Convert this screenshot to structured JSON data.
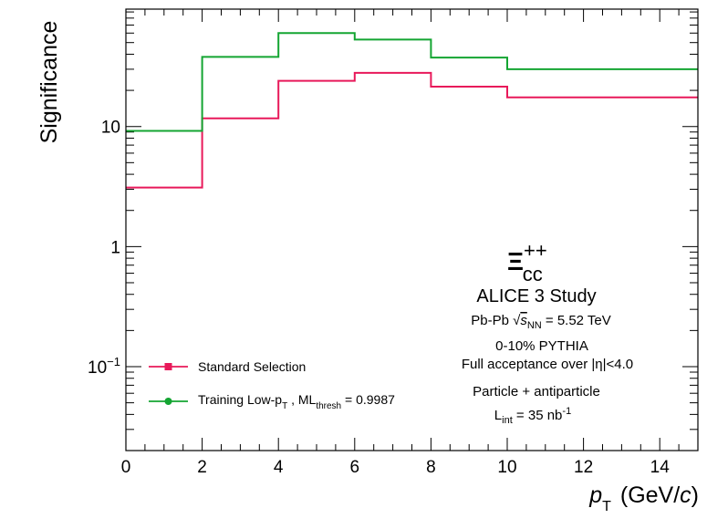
{
  "chart_data": {
    "type": "line",
    "step": true,
    "yscale": "log",
    "ylabel": "Significance",
    "xlabel": "p_T (GeV/c)",
    "xlabel_parts": {
      "main": "p",
      "sub": "T",
      "unit": "(GeV/",
      "unit_var": "c",
      "unit_close": ")"
    },
    "xlim": [
      0,
      15
    ],
    "ylim": [
      0.02,
      95
    ],
    "x_ticks": [
      0,
      2,
      4,
      6,
      8,
      10,
      12,
      14
    ],
    "x_tick_labels": [
      "0",
      "2",
      "4",
      "6",
      "8",
      "10",
      "12",
      "14"
    ],
    "y_major_ticks": [
      0.1,
      1,
      10
    ],
    "y_tick_labels": [
      "10^-1",
      "1",
      "10"
    ],
    "bin_edges": [
      0,
      2,
      4,
      6,
      8,
      10,
      15
    ],
    "series": [
      {
        "name": "Standard Selection",
        "color": "#e8195a",
        "marker": "square",
        "values": [
          3.1,
          11.7,
          24,
          28,
          21.5,
          17.5
        ]
      },
      {
        "name": "Training Low-p_T , ML_thresh = 0.9987",
        "color": "#14a532",
        "marker": "circle",
        "values": [
          9.2,
          38,
          60,
          53,
          37.5,
          30
        ]
      }
    ],
    "legend": {
      "position": "bottom-left",
      "entries": [
        {
          "text": "Standard Selection"
        },
        {
          "parts": [
            "Training Low-p",
            "T",
            " , ML",
            "thresh",
            " = 0.9987"
          ]
        }
      ]
    },
    "annotations": {
      "particle_symbol": "Ξ",
      "particle_sup": "++",
      "particle_sub": "cc",
      "study": "ALICE 3 Study",
      "system_prefix": "Pb-Pb ",
      "system_s": "s",
      "system_sub": "NN",
      "system_value": " = 5.52 TeV",
      "centrality": "0-10% PYTHIA",
      "acceptance": "Full acceptance over |η|<4.0",
      "particles": "Particle + antiparticle",
      "lumi_prefix": "L",
      "lumi_sub": "int",
      "lumi_value": " = 35 nb",
      "lumi_exp": "-1"
    }
  }
}
